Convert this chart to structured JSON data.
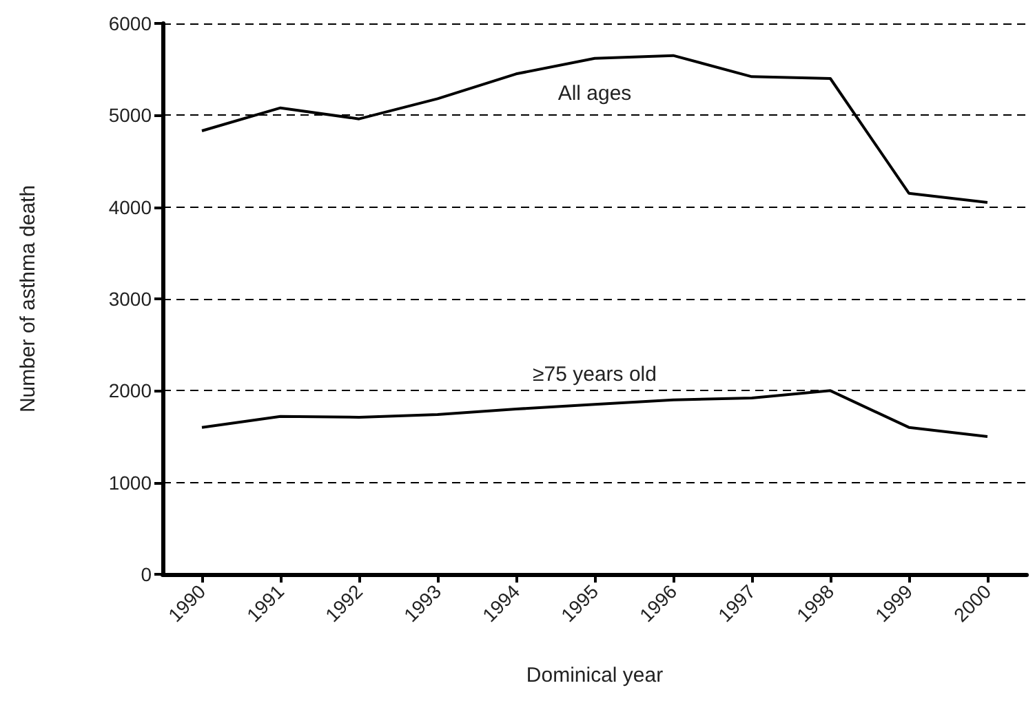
{
  "chart_data": {
    "type": "line",
    "xlabel": "Dominical year",
    "ylabel": "Number of asthma death",
    "categories": [
      "1990",
      "1991",
      "1992",
      "1993",
      "1994",
      "1995",
      "1996",
      "1997",
      "1998",
      "1999",
      "2000"
    ],
    "series": [
      {
        "name": "All ages",
        "color": "#000000",
        "values": [
          4830,
          5080,
          4960,
          5180,
          5450,
          5620,
          5650,
          5420,
          5400,
          4150,
          4050
        ]
      },
      {
        "name": "≥75 years old",
        "color": "#000000",
        "values": [
          1600,
          1720,
          1710,
          1740,
          1800,
          1850,
          1900,
          1920,
          2000,
          1600,
          1500
        ]
      }
    ],
    "ylim": [
      0,
      6000
    ],
    "yticks": [
      0,
      1000,
      2000,
      3000,
      4000,
      5000,
      6000
    ],
    "grid": "y",
    "legend": false,
    "marker": "none",
    "line_style": "solid"
  }
}
